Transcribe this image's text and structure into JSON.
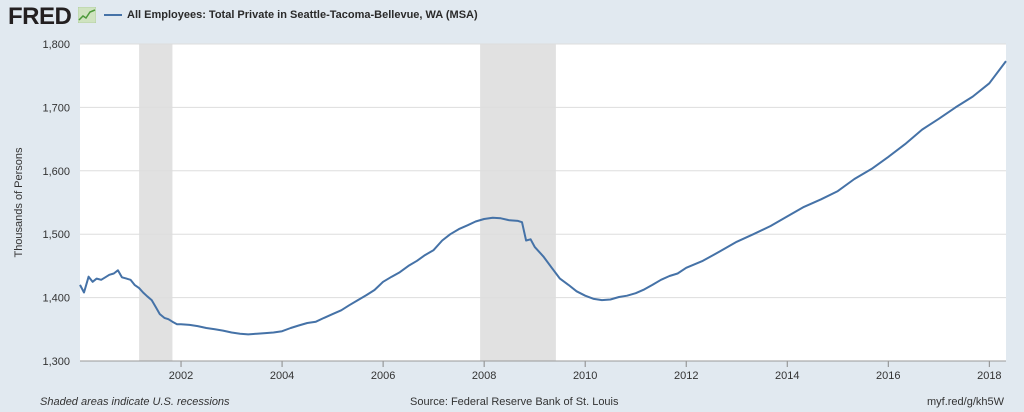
{
  "header": {
    "logo_text": "FRED",
    "legend_label": "All Employees: Total Private in Seattle-Tacoma-Bellevue, WA (MSA)"
  },
  "footer": {
    "note": "Shaded areas indicate U.S. recessions",
    "source": "Source: Federal Reserve Bank of St. Louis",
    "link": "myf.red/g/kh5W"
  },
  "colors": {
    "line": "#4572a7",
    "recession": "#e1e1e1",
    "background": "#e1e9f0",
    "plot_bg": "#ffffff",
    "grid": "#dddddd"
  },
  "chart_data": {
    "type": "line",
    "title": "",
    "xlabel": "",
    "ylabel": "Thousands of Persons",
    "xlim": [
      2000.0,
      2018.33
    ],
    "ylim": [
      1300,
      1800
    ],
    "y_ticks": [
      1300,
      1400,
      1500,
      1600,
      1700,
      1800
    ],
    "y_tick_labels": [
      "1,300",
      "1,400",
      "1,500",
      "1,600",
      "1,700",
      "1,800"
    ],
    "x_ticks": [
      2002,
      2004,
      2006,
      2008,
      2010,
      2012,
      2014,
      2016,
      2018
    ],
    "x_tick_labels": [
      "2002",
      "2004",
      "2006",
      "2008",
      "2010",
      "2012",
      "2014",
      "2016",
      "2018"
    ],
    "recessions": [
      [
        2001.17,
        2001.83
      ],
      [
        2007.92,
        2009.42
      ]
    ],
    "grid": "horizontal",
    "series": [
      {
        "name": "All Employees: Total Private in Seattle-Tacoma-Bellevue, WA (MSA)",
        "x": [
          2000.0,
          2000.08,
          2000.17,
          2000.25,
          2000.33,
          2000.42,
          2000.5,
          2000.58,
          2000.67,
          2000.75,
          2000.83,
          2000.92,
          2001.0,
          2001.08,
          2001.17,
          2001.25,
          2001.33,
          2001.42,
          2001.5,
          2001.58,
          2001.67,
          2001.75,
          2001.83,
          2001.92,
          2002.0,
          2002.17,
          2002.33,
          2002.5,
          2002.67,
          2002.83,
          2003.0,
          2003.17,
          2003.33,
          2003.5,
          2003.67,
          2003.83,
          2004.0,
          2004.17,
          2004.33,
          2004.5,
          2004.67,
          2004.83,
          2005.0,
          2005.17,
          2005.33,
          2005.5,
          2005.67,
          2005.83,
          2006.0,
          2006.17,
          2006.33,
          2006.5,
          2006.67,
          2006.83,
          2007.0,
          2007.17,
          2007.33,
          2007.5,
          2007.67,
          2007.83,
          2008.0,
          2008.17,
          2008.33,
          2008.5,
          2008.67,
          2008.75,
          2008.83,
          2008.92,
          2009.0,
          2009.17,
          2009.33,
          2009.5,
          2009.67,
          2009.83,
          2010.0,
          2010.17,
          2010.33,
          2010.5,
          2010.67,
          2010.83,
          2011.0,
          2011.17,
          2011.33,
          2011.5,
          2011.67,
          2011.83,
          2012.0,
          2012.33,
          2012.67,
          2013.0,
          2013.33,
          2013.67,
          2014.0,
          2014.33,
          2014.67,
          2015.0,
          2015.33,
          2015.67,
          2016.0,
          2016.33,
          2016.67,
          2017.0,
          2017.33,
          2017.67,
          2018.0,
          2018.33
        ],
        "values": [
          1420,
          1408,
          1433,
          1425,
          1430,
          1428,
          1432,
          1436,
          1438,
          1443,
          1432,
          1430,
          1428,
          1420,
          1415,
          1408,
          1402,
          1396,
          1385,
          1374,
          1368,
          1366,
          1362,
          1358,
          1358,
          1357,
          1355,
          1352,
          1350,
          1348,
          1345,
          1343,
          1342,
          1343,
          1344,
          1345,
          1347,
          1352,
          1356,
          1360,
          1362,
          1368,
          1374,
          1380,
          1388,
          1396,
          1404,
          1412,
          1425,
          1433,
          1440,
          1450,
          1458,
          1467,
          1475,
          1490,
          1500,
          1508,
          1514,
          1520,
          1524,
          1526,
          1525,
          1522,
          1521,
          1519,
          1490,
          1492,
          1480,
          1465,
          1448,
          1430,
          1420,
          1410,
          1403,
          1398,
          1396,
          1397,
          1401,
          1403,
          1407,
          1413,
          1420,
          1428,
          1434,
          1438,
          1447,
          1458,
          1473,
          1488,
          1500,
          1513,
          1528,
          1543,
          1555,
          1568,
          1587,
          1603,
          1622,
          1642,
          1665,
          1682,
          1700,
          1717,
          1738,
          1773
        ]
      }
    ]
  }
}
